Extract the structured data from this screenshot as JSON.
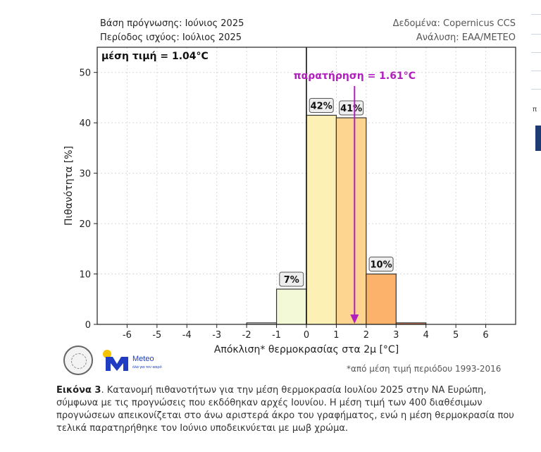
{
  "header": {
    "forecast_base": "Βάση πρόγνωσης: Ιούνιος 2025",
    "validity_period": "Περίοδος ισχύος: Ιούλιος 2025",
    "data_source": "Δεδομένα: Copernicus CCS",
    "analysis": "Ανάλυση: ΕΑΑ/ΜΕΤΕΟ"
  },
  "chart_data": {
    "type": "bar",
    "xlabel": "Απόκλιση* θερμοκρασίας στα 2μ [°C]",
    "ylabel": "Πιθανότητα [%]",
    "xlim": [
      -7,
      7
    ],
    "ylim": [
      0,
      55
    ],
    "xticks": [
      -6,
      -5,
      -4,
      -3,
      -2,
      -1,
      0,
      1,
      2,
      3,
      4,
      5,
      6
    ],
    "yticks": [
      0,
      10,
      20,
      30,
      40,
      50
    ],
    "grid": true,
    "bins": [
      {
        "from": -2,
        "to": -1,
        "value": 0.3,
        "color": "#f2f2f2"
      },
      {
        "from": -1,
        "to": 0,
        "value": 7,
        "color": "#f3f9d6",
        "label": "7%"
      },
      {
        "from": 0,
        "to": 1,
        "value": 41.5,
        "color": "#fdf0b5",
        "label": "42%"
      },
      {
        "from": 1,
        "to": 2,
        "value": 41,
        "color": "#fdd590",
        "label": "41%"
      },
      {
        "from": 2,
        "to": 3,
        "value": 10,
        "color": "#fcb26a",
        "label": "10%"
      },
      {
        "from": 3,
        "to": 4,
        "value": 0.3,
        "color": "#e9865a"
      }
    ],
    "mean_label": "μέση τιμή = 1.04°C",
    "mean_value": 1.04,
    "observation_label": "παρατήρηση = 1.61°C",
    "observation_value": 1.61,
    "observation_color": "#b11fbf",
    "zero_line": 0
  },
  "footnote": "*από μέση τιμή περιόδου 1993-2016",
  "logo": {
    "brand": "Meteo",
    "tagline": "όλα για τον καιρό"
  },
  "caption": {
    "label": "Εικόνα 3",
    "text": ". Κατανομή πιθανοτήτων για την μέση θερμοκρασία Ιουλίου 2025 στην ΝΑ Ευρώπη, σύμφωνα με τις προγνώσεις που εκδόθηκαν αρχές Ιουνίου. Η μέση τιμή των 400 διαθέσιμων προγνώσεων απεικονίζεται στο άνω αριστερά άκρο του γραφήματος, ενώ η μέση θερμοκρασία που τελικά παρατηρήθηκε τον Ιούνιο υποδεικνύεται με μωβ χρώμα."
  },
  "side": {
    "char": "π"
  }
}
